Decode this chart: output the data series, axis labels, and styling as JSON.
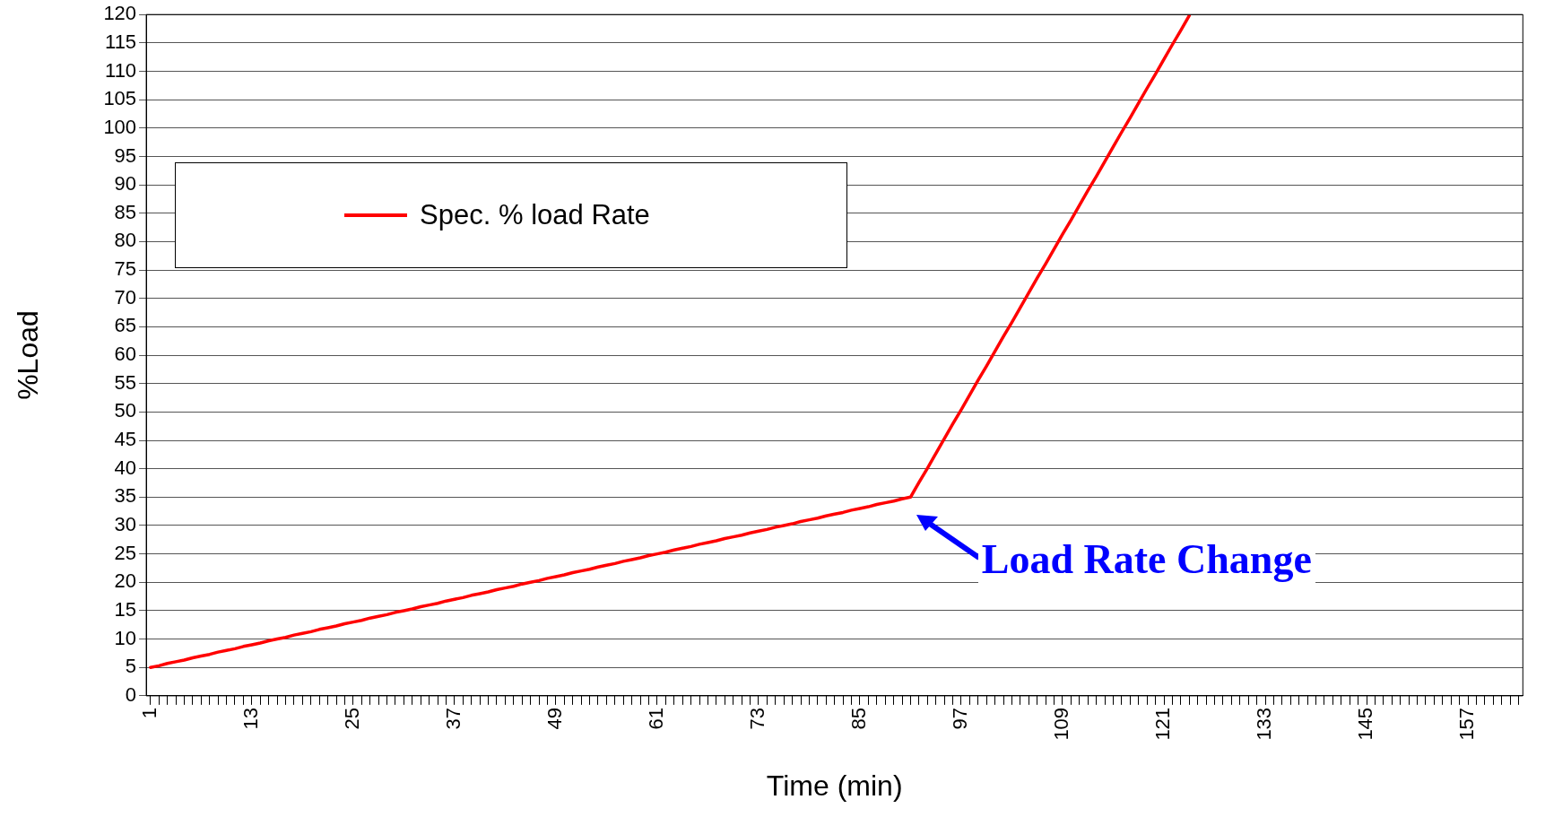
{
  "chart_data": {
    "type": "line",
    "xlabel": "Time (min)",
    "ylabel": "%Load",
    "categories": [
      "1",
      null,
      null,
      null,
      null,
      null,
      null,
      null,
      null,
      null,
      null,
      null,
      "13",
      null,
      null,
      null,
      null,
      null,
      null,
      null,
      null,
      null,
      null,
      null,
      "25",
      null,
      null,
      null,
      null,
      null,
      null,
      null,
      null,
      null,
      null,
      null,
      "37",
      null,
      null,
      null,
      null,
      null,
      null,
      null,
      null,
      null,
      null,
      null,
      "49",
      null,
      null,
      null,
      null,
      null,
      null,
      null,
      null,
      null,
      null,
      null,
      "61",
      null,
      null,
      null,
      null,
      null,
      null,
      null,
      null,
      null,
      null,
      null,
      "73",
      null,
      null,
      null,
      null,
      null,
      null,
      null,
      null,
      null,
      null,
      null,
      "85",
      null,
      null,
      null,
      null,
      null,
      null,
      null,
      null,
      null,
      null,
      null,
      "97",
      null,
      null,
      null,
      null,
      null,
      null,
      null,
      null,
      null,
      null,
      null,
      "109",
      null,
      null,
      null,
      null,
      null,
      null,
      null,
      null,
      null,
      null,
      null,
      "121",
      null,
      null,
      null,
      null,
      null,
      null,
      null,
      null,
      null,
      null,
      null,
      "133",
      null,
      null,
      null,
      null,
      null,
      null,
      null,
      null,
      null,
      null,
      null,
      "145",
      null,
      null,
      null,
      null,
      null,
      null,
      null,
      null,
      null,
      null,
      null,
      "157",
      null,
      null,
      null,
      null,
      null,
      null
    ],
    "series": [
      {
        "name": "Spec. % load Rate",
        "color": "#ff0000",
        "values": [
          5,
          5.3,
          5.7,
          6,
          6.3,
          6.7,
          7,
          7.3,
          7.7,
          8,
          8.3,
          8.7,
          9,
          9.3,
          9.7,
          10,
          10.3,
          10.7,
          11,
          11.3,
          11.7,
          12,
          12.3,
          12.7,
          13,
          13.3,
          13.7,
          14,
          14.3,
          14.7,
          15,
          15.3,
          15.7,
          16,
          16.3,
          16.7,
          17,
          17.3,
          17.7,
          18,
          18.3,
          18.7,
          19,
          19.3,
          19.7,
          20,
          20.3,
          20.7,
          21,
          21.3,
          21.7,
          22,
          22.3,
          22.7,
          23,
          23.3,
          23.7,
          24,
          24.3,
          24.7,
          25,
          25.3,
          25.7,
          26,
          26.3,
          26.7,
          27,
          27.3,
          27.7,
          28,
          28.3,
          28.7,
          29,
          29.3,
          29.7,
          30,
          30.3,
          30.7,
          31,
          31.3,
          31.7,
          32,
          32.3,
          32.7,
          33,
          33.3,
          33.7,
          34,
          34.3,
          34.7,
          35,
          37.6,
          40.1,
          42.7,
          45.3,
          47.9,
          50.4,
          53,
          55.6,
          58.1,
          60.7,
          63.3,
          65.8,
          68.4,
          71,
          73.6,
          76.1,
          78.7,
          81.3,
          83.8,
          86.4,
          89,
          91.5,
          94.1,
          96.7,
          99.3,
          101.8,
          104.4,
          107,
          109.5,
          112.1,
          114.7,
          117.2,
          119.8,
          null,
          null,
          null,
          null,
          null,
          null,
          null,
          null,
          null,
          null,
          null,
          null,
          null,
          null,
          null,
          null,
          null,
          null,
          null,
          null,
          null,
          null,
          null,
          null,
          null,
          null,
          null,
          null,
          null,
          null,
          null,
          null,
          null,
          null,
          null,
          null,
          null,
          null,
          null
        ]
      }
    ],
    "ylim": [
      0,
      120
    ],
    "yticks": [
      0,
      5,
      10,
      15,
      20,
      25,
      30,
      35,
      40,
      45,
      50,
      55,
      60,
      65,
      70,
      75,
      80,
      85,
      90,
      95,
      100,
      105,
      110,
      115,
      120
    ],
    "grid": "y",
    "legend": "top left",
    "marker": "none",
    "line_style": "solid",
    "annotations": [
      "Load Rate Change"
    ]
  }
}
